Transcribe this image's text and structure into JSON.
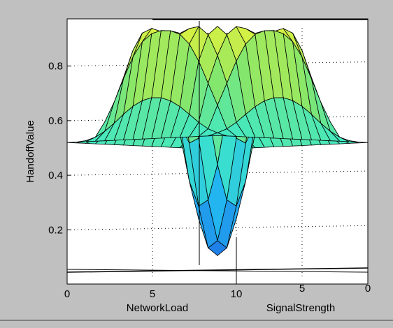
{
  "chart_data": {
    "type": "surface",
    "title": "",
    "zlabel": "HandoffValue",
    "xlabel": "NetworkLoad",
    "ylabel": "SignalStrength",
    "x_ticks": [
      "0",
      "5",
      "10"
    ],
    "y_ticks": [
      "5",
      "0"
    ],
    "z_ticks": [
      "0.2",
      "0.4",
      "0.6",
      "0.8"
    ],
    "zlim": [
      0.05,
      0.95
    ],
    "xlim": [
      0,
      10
    ],
    "ylim": [
      0,
      10
    ],
    "grid": true,
    "colormap": [
      "#1e6fe6",
      "#22b4f0",
      "#3ee8c8",
      "#86e66a",
      "#e6f23c"
    ],
    "surface": {
      "baseline": 0.52,
      "peak_ridge": 0.95,
      "trough_min": 0.08,
      "resolution": 16
    }
  }
}
